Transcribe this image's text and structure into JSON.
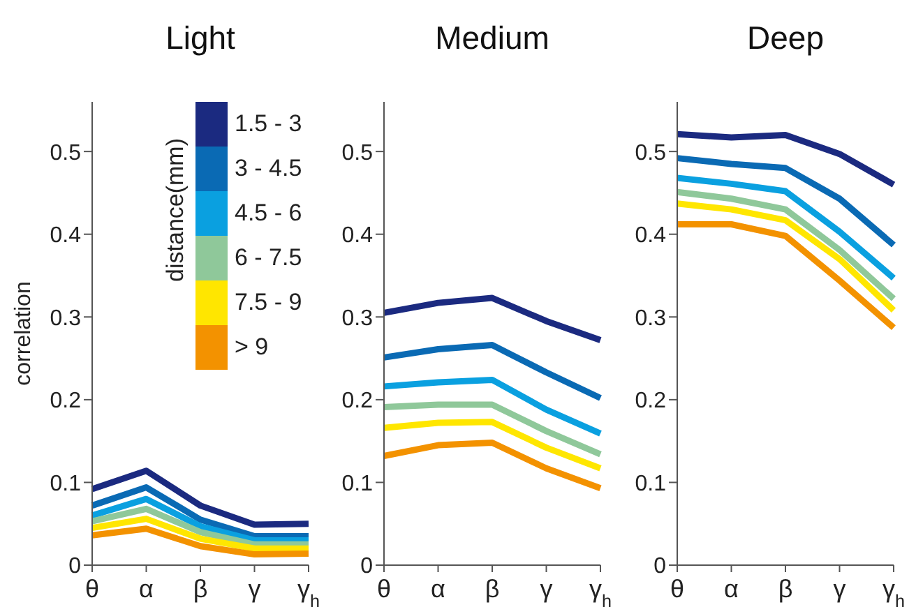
{
  "chart_data": [
    {
      "type": "line",
      "title": "Light",
      "ylabel": "correlation",
      "legend_title": "distance(mm)",
      "legend": "top right",
      "categories": [
        "θ",
        "α",
        "β",
        "γ",
        "γ$_{h}$"
      ],
      "ylim": [
        0,
        0.56
      ],
      "yticks": [
        0,
        0.1,
        0.2,
        0.3,
        0.4,
        0.5
      ],
      "series": [
        {
          "name": "1.5 - 3",
          "color": "#1b2a80",
          "values": [
            0.092,
            0.114,
            0.072,
            0.049,
            0.05
          ]
        },
        {
          "name": "3 - 4.5",
          "color": "#0a6ab4",
          "values": [
            0.072,
            0.094,
            0.055,
            0.035,
            0.035
          ]
        },
        {
          "name": "4.5 - 6",
          "color": "#0aa0e0",
          "values": [
            0.06,
            0.08,
            0.047,
            0.03,
            0.03
          ]
        },
        {
          "name": "6 - 7.5",
          "color": "#8fc89a",
          "values": [
            0.053,
            0.068,
            0.04,
            0.025,
            0.025
          ]
        },
        {
          "name": "7.5 - 9",
          "color": "#ffe600",
          "values": [
            0.045,
            0.056,
            0.032,
            0.02,
            0.02
          ]
        },
        {
          "name": "> 9",
          "color": "#f39200",
          "values": [
            0.036,
            0.044,
            0.023,
            0.013,
            0.014
          ]
        }
      ]
    },
    {
      "type": "line",
      "title": "Medium",
      "categories": [
        "θ",
        "α",
        "β",
        "γ",
        "γ$_{h}$"
      ],
      "ylim": [
        0,
        0.56
      ],
      "yticks": [
        0,
        0.1,
        0.2,
        0.3,
        0.4,
        0.5
      ],
      "series": [
        {
          "color": "#1b2a80",
          "values": [
            0.305,
            0.317,
            0.323,
            0.295,
            0.272
          ]
        },
        {
          "color": "#0a6ab4",
          "values": [
            0.251,
            0.261,
            0.266,
            0.233,
            0.202
          ]
        },
        {
          "color": "#0aa0e0",
          "values": [
            0.216,
            0.221,
            0.224,
            0.188,
            0.159
          ]
        },
        {
          "color": "#8fc89a",
          "values": [
            0.191,
            0.194,
            0.194,
            0.162,
            0.134
          ]
        },
        {
          "color": "#ffe600",
          "values": [
            0.166,
            0.172,
            0.173,
            0.142,
            0.117
          ]
        },
        {
          "color": "#f39200",
          "values": [
            0.132,
            0.145,
            0.148,
            0.117,
            0.093
          ]
        }
      ]
    },
    {
      "type": "line",
      "title": "Deep",
      "categories": [
        "θ",
        "α",
        "β",
        "γ",
        "γ$_{h}$"
      ],
      "ylim": [
        0,
        0.56
      ],
      "yticks": [
        0,
        0.1,
        0.2,
        0.3,
        0.4,
        0.5
      ],
      "series": [
        {
          "color": "#1b2a80",
          "values": [
            0.521,
            0.517,
            0.52,
            0.497,
            0.46
          ]
        },
        {
          "color": "#0a6ab4",
          "values": [
            0.492,
            0.485,
            0.48,
            0.443,
            0.387
          ]
        },
        {
          "color": "#0aa0e0",
          "values": [
            0.468,
            0.461,
            0.452,
            0.403,
            0.347
          ]
        },
        {
          "color": "#8fc89a",
          "values": [
            0.451,
            0.443,
            0.43,
            0.381,
            0.322
          ]
        },
        {
          "color": "#ffe600",
          "values": [
            0.437,
            0.43,
            0.417,
            0.37,
            0.308
          ]
        },
        {
          "color": "#f39200",
          "values": [
            0.412,
            0.412,
            0.398,
            0.344,
            0.287
          ]
        }
      ]
    }
  ]
}
